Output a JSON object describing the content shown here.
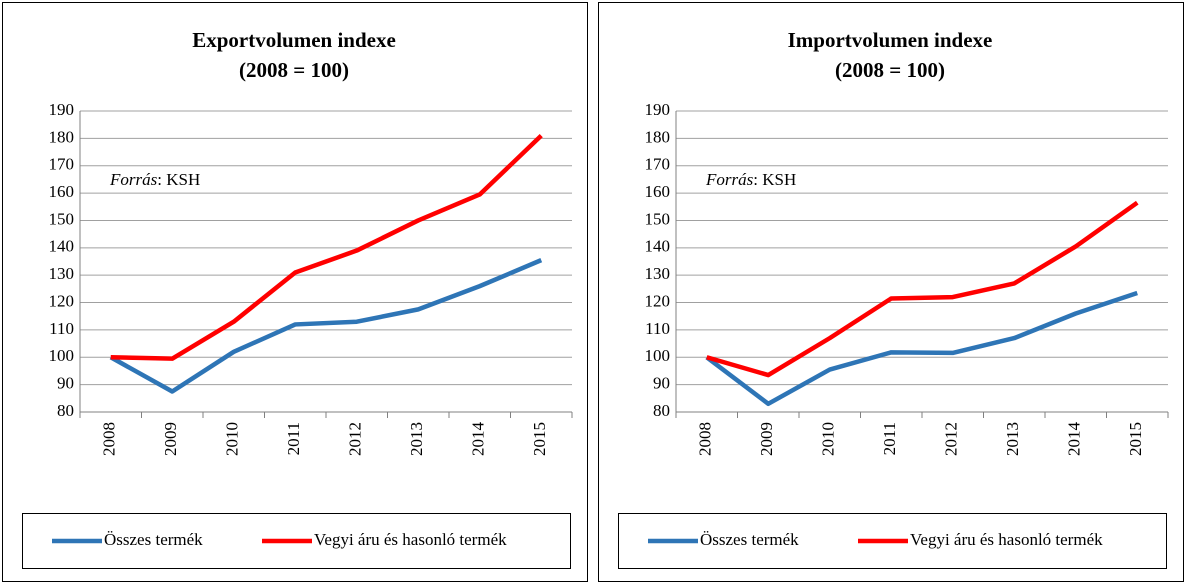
{
  "chart_data": [
    {
      "type": "line",
      "title": "Exportvolumen indexe",
      "subtitle": "(2008 = 100)",
      "annotation": [
        "Forrás",
        ": KSH"
      ],
      "categories": [
        "2008",
        "2009",
        "2010",
        "2011",
        "2012",
        "2013",
        "2014",
        "2015"
      ],
      "series": [
        {
          "name": "Összes termék",
          "color": "#2e75b6",
          "values": [
            100,
            87.5,
            102,
            112,
            113,
            117.5,
            126,
            135.5
          ]
        },
        {
          "name": "Vegyi áru és hasonló termék",
          "color": "#ff0000",
          "values": [
            100,
            99.5,
            113,
            131,
            139,
            150,
            159.5,
            181
          ]
        }
      ],
      "ylim": [
        80,
        190
      ],
      "yticks": [
        80,
        90,
        100,
        110,
        120,
        130,
        140,
        150,
        160,
        170,
        180,
        190
      ],
      "grid": true,
      "legend": "bottom"
    },
    {
      "type": "line",
      "title": "Importvolumen indexe",
      "subtitle": "(2008 = 100)",
      "annotation": [
        "Forrás",
        ": KSH"
      ],
      "categories": [
        "2008",
        "2009",
        "2010",
        "2011",
        "2012",
        "2013",
        "2014",
        "2015"
      ],
      "series": [
        {
          "name": "Összes termék",
          "color": "#2e75b6",
          "values": [
            100,
            83,
            95.5,
            101.8,
            101.6,
            107,
            116,
            123.5
          ]
        },
        {
          "name": "Vegyi áru és hasonló termék",
          "color": "#ff0000",
          "values": [
            100,
            93.5,
            107,
            121.5,
            122,
            127,
            140.5,
            156.5
          ]
        }
      ],
      "ylim": [
        80,
        190
      ],
      "yticks": [
        80,
        90,
        100,
        110,
        120,
        130,
        140,
        150,
        160,
        170,
        180,
        190
      ],
      "grid": true,
      "legend": "bottom"
    }
  ]
}
